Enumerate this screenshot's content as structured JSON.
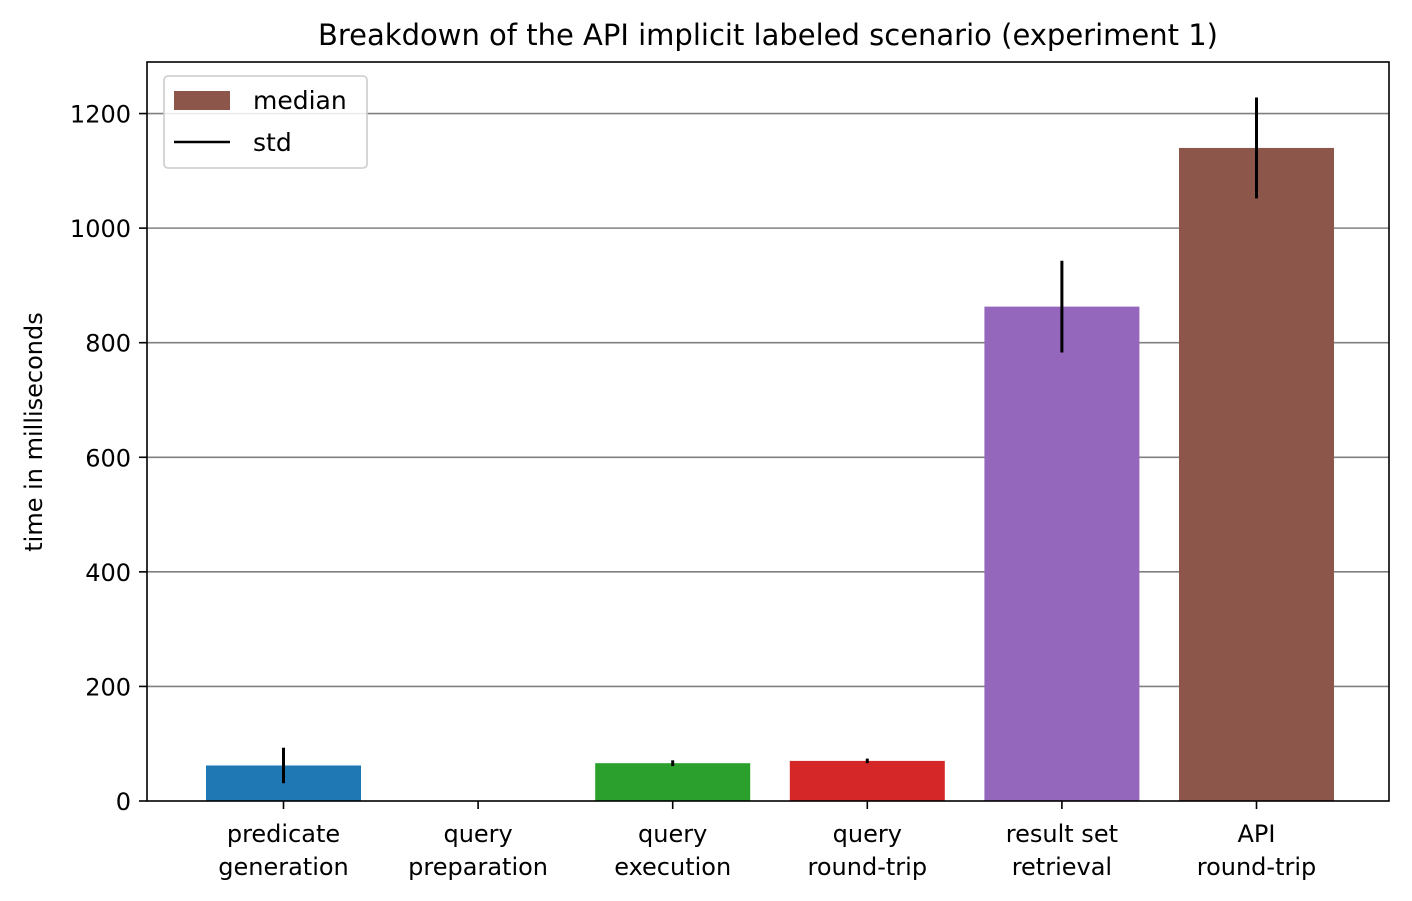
{
  "chart_data": {
    "type": "bar",
    "title": "Breakdown of the API implicit labeled scenario (experiment 1)",
    "ylabel": "time in milliseconds",
    "xlabel": "",
    "categories": [
      [
        "predicate",
        "generation"
      ],
      [
        "query",
        "preparation"
      ],
      [
        "query",
        "execution"
      ],
      [
        "query",
        "round-trip"
      ],
      [
        "result set",
        "retrieval"
      ],
      [
        "API",
        "round-trip"
      ]
    ],
    "series": [
      {
        "name": "median",
        "values": [
          62,
          0,
          66,
          70,
          863,
          1140
        ],
        "std": [
          31,
          0,
          5,
          4,
          80,
          88
        ],
        "colors": [
          "#1f77b4",
          "#1f77b4",
          "#2ca02c",
          "#d62728",
          "#9467bd",
          "#8c564b"
        ]
      }
    ],
    "ylim": [
      0,
      1290
    ],
    "yticks": [
      0,
      200,
      400,
      600,
      800,
      1000,
      1200
    ],
    "grid": "horizontal",
    "grid_color": "#808080",
    "legend": {
      "position": "top-left",
      "entries": [
        {
          "label": "median",
          "kind": "patch",
          "color": "#8c564b"
        },
        {
          "label": "std",
          "kind": "line",
          "color": "#000000"
        }
      ]
    }
  }
}
